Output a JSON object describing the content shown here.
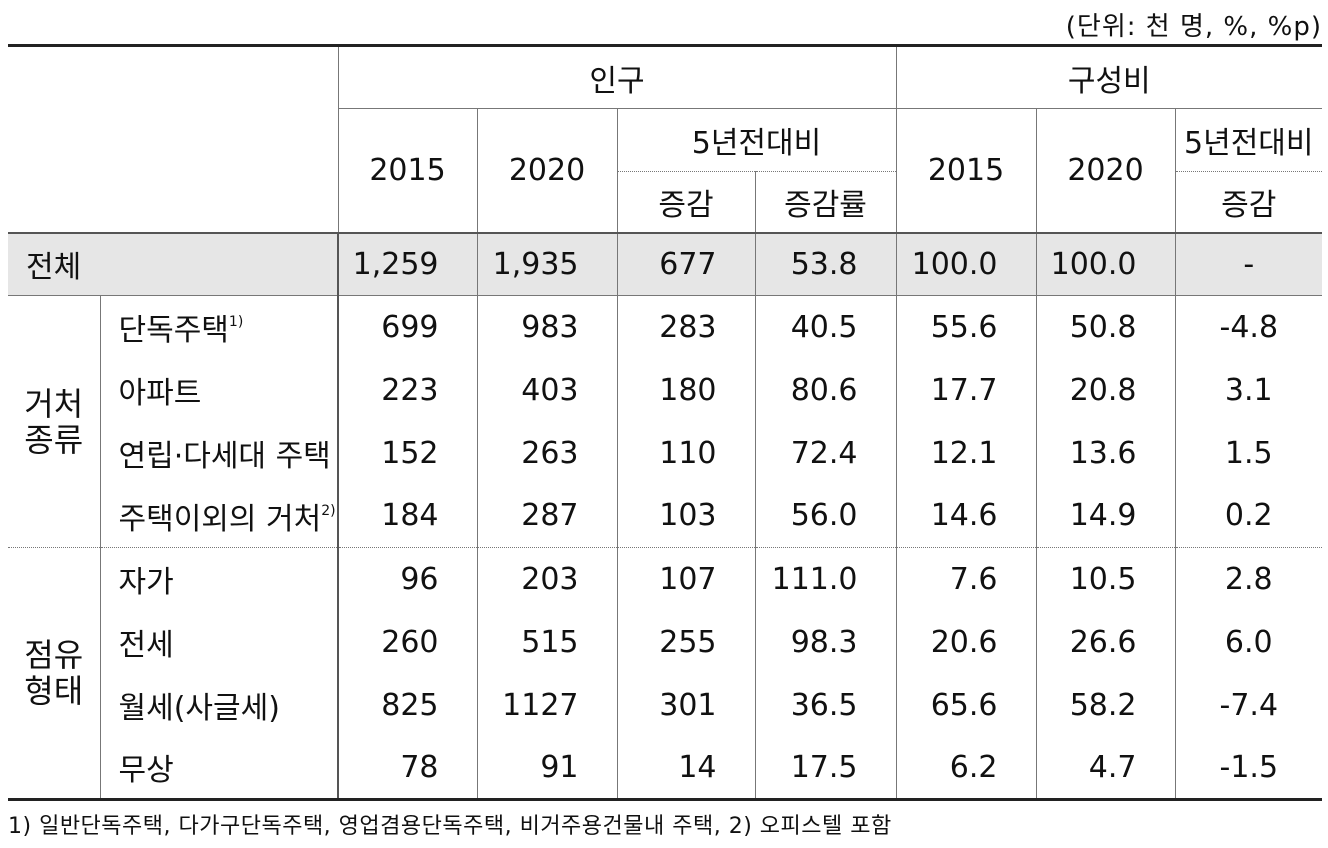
{
  "unit_label": "(단위: 천 명, %, %p)",
  "header": {
    "population": "인구",
    "composition": "구성비",
    "y2015": "2015",
    "y2020": "2020",
    "vs5y": "5년전대비",
    "change": "증감",
    "change_rate": "증감률"
  },
  "total": {
    "label": "전체",
    "values": [
      "1,259",
      "1,935",
      "677",
      "53.8",
      "100.0",
      "100.0",
      "-"
    ]
  },
  "groups": [
    {
      "name_line1": "거처",
      "name_line2": "종류",
      "rows": [
        {
          "label": "단독주택",
          "sup": "1)",
          "values": [
            "699",
            "983",
            "283",
            "40.5",
            "55.6",
            "50.8",
            "-4.8"
          ]
        },
        {
          "label": "아파트",
          "sup": "",
          "values": [
            "223",
            "403",
            "180",
            "80.6",
            "17.7",
            "20.8",
            "3.1"
          ]
        },
        {
          "label": "연립·다세대 주택",
          "sup": "",
          "values": [
            "152",
            "263",
            "110",
            "72.4",
            "12.1",
            "13.6",
            "1.5"
          ]
        },
        {
          "label": "주택이외의 거처",
          "sup": "2)",
          "values": [
            "184",
            "287",
            "103",
            "56.0",
            "14.6",
            "14.9",
            "0.2"
          ]
        }
      ]
    },
    {
      "name_line1": "점유",
      "name_line2": "형태",
      "rows": [
        {
          "label": "자가",
          "sup": "",
          "values": [
            "96",
            "203",
            "107",
            "111.0",
            "7.6",
            "10.5",
            "2.8"
          ]
        },
        {
          "label": "전세",
          "sup": "",
          "values": [
            "260",
            "515",
            "255",
            "98.3",
            "20.6",
            "26.6",
            "6.0"
          ]
        },
        {
          "label": "월세(사글세)",
          "sup": "",
          "values": [
            "825",
            "1127",
            "301",
            "36.5",
            "65.6",
            "58.2",
            "-7.4"
          ]
        },
        {
          "label": "무상",
          "sup": "",
          "values": [
            "78",
            "91",
            "14",
            "17.5",
            "6.2",
            "4.7",
            "-1.5"
          ]
        }
      ]
    }
  ],
  "footnote": "1) 일반단독주택, 다가구단독주택, 영업겸용단독주택, 비거주용건물내 주택, 2) 오피스텔 포함"
}
